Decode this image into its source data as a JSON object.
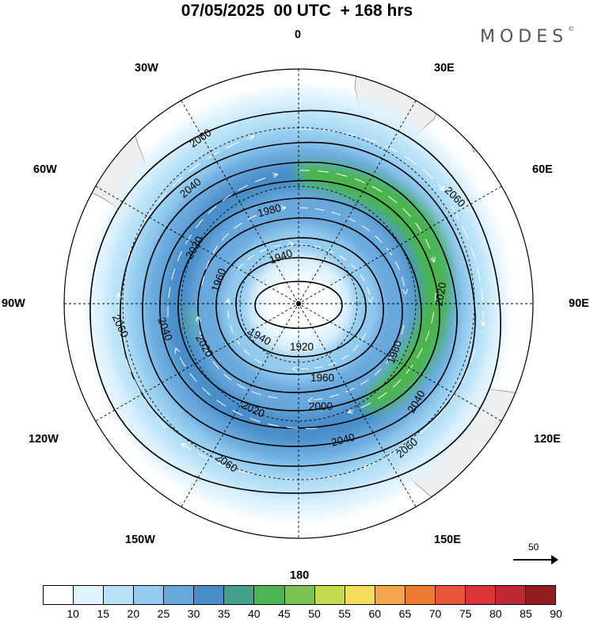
{
  "title": "07/05/2025  00 UTC  + 168 hrs",
  "logo": "MODES",
  "logo_mark": "©",
  "longitude_labels": {
    "lon_0": "0",
    "lon_30E": "30E",
    "lon_60E": "60E",
    "lon_90E": "90E",
    "lon_120E": "120E",
    "lon_150E": "150E",
    "lon_180": "180",
    "lon_150W": "150W",
    "lon_120W": "120W",
    "lon_90W": "90W",
    "lon_60W": "60W",
    "lon_30W": "30W"
  },
  "contours": {
    "c1920": "1920",
    "c1940a": "1940",
    "c1940b": "1940",
    "c1960a": "1960",
    "c1960b": "1960",
    "c1980a": "1980",
    "c1980b": "1980",
    "c2000": "2000",
    "c2020a": "2020",
    "c2020b": "2020",
    "c2020c": "2020",
    "c2020d": "2020",
    "c2040a": "2040",
    "c2040b": "2040",
    "c2040c": "2040",
    "c2040d": "2040",
    "c2060a": "2060",
    "c2060b": "2060",
    "c2060c": "2060",
    "c2060d": "2060",
    "c2060e": "2060"
  },
  "vector_reference": "50",
  "colorbar": {
    "labels": [
      "10",
      "15",
      "20",
      "25",
      "30",
      "35",
      "40",
      "45",
      "50",
      "55",
      "60",
      "65",
      "70",
      "75",
      "80",
      "85",
      "90"
    ],
    "colors": [
      "#ffffff",
      "#dff3fd",
      "#b8e2f8",
      "#92cbee",
      "#69a8dd",
      "#4a8ec8",
      "#45a08c",
      "#4cb450",
      "#7cc24e",
      "#c3d94e",
      "#f4dd5a",
      "#f5a54a",
      "#ef7c33",
      "#e8553a",
      "#d93535",
      "#be2830",
      "#931d23"
    ]
  }
}
